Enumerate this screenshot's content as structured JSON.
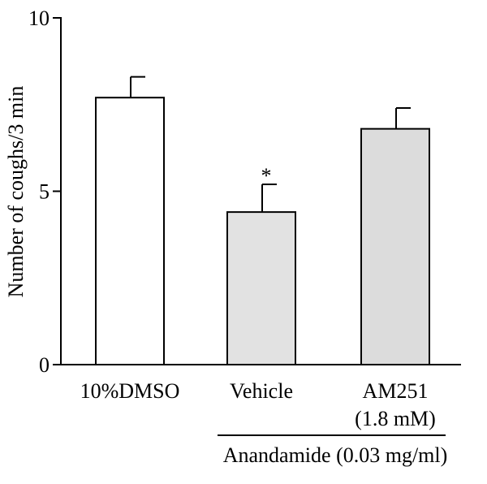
{
  "chart_data": {
    "type": "bar",
    "title": "",
    "ylabel": "Number of coughs/3 min",
    "ylim": [
      0,
      10
    ],
    "yticks": [
      0,
      5,
      10
    ],
    "categories": [
      "10%DMSO",
      "Vehicle",
      "AM251"
    ],
    "category_sublabels": [
      "",
      "",
      "(1.8 mM)"
    ],
    "values": [
      7.7,
      4.4,
      6.8
    ],
    "errors": [
      0.6,
      0.8,
      0.6
    ],
    "fills": [
      "#ffffff",
      "#e2e2e2",
      "#dcdcdc"
    ],
    "annotations": [
      "",
      "*",
      ""
    ],
    "group_label": "Anandamide (0.03 mg/ml)",
    "group_categories": [
      1,
      2
    ]
  }
}
